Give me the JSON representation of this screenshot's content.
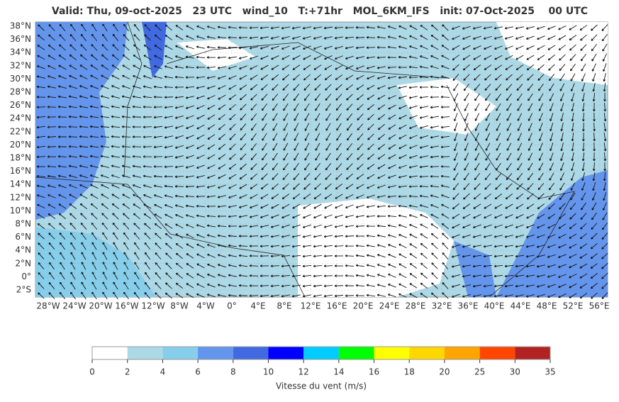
{
  "title": "Valid: Thu, 09-oct-2025   23 UTC   wind_10   T:+71hr   MOL_6KM_IFS   init: 07-Oct-2025    00 UTC",
  "map": {
    "lat_labels": [
      "38°N",
      "36°N",
      "34°N",
      "32°N",
      "30°N",
      "28°N",
      "26°N",
      "24°N",
      "22°N",
      "20°N",
      "18°N",
      "16°N",
      "14°N",
      "12°N",
      "10°N",
      "8°N",
      "6°N",
      "4°N",
      "2°N",
      "0°",
      "2°S"
    ],
    "lon_labels": [
      "28°W",
      "24°W",
      "20°W",
      "16°W",
      "12°W",
      "8°W",
      "4°W",
      "0°",
      "4°E",
      "8°E",
      "12°E",
      "16°E",
      "20°E",
      "24°E",
      "28°E",
      "32°E",
      "36°E",
      "40°E",
      "44°E",
      "48°E",
      "52°E",
      "56°E"
    ]
  },
  "colorbar": {
    "ticks": [
      "0",
      "2",
      "4",
      "6",
      "8",
      "10",
      "12",
      "14",
      "16",
      "18",
      "20",
      "25",
      "30",
      "35"
    ],
    "colors": [
      "#ffffff",
      "#add8e6",
      "#87ceeb",
      "#6495ed",
      "#4169e1",
      "#0000ff",
      "#00ccff",
      "#00ff00",
      "#ffff00",
      "#ffd700",
      "#ffa500",
      "#ff4500",
      "#b22222"
    ],
    "label": "Vitesse du vent (m/s)"
  }
}
